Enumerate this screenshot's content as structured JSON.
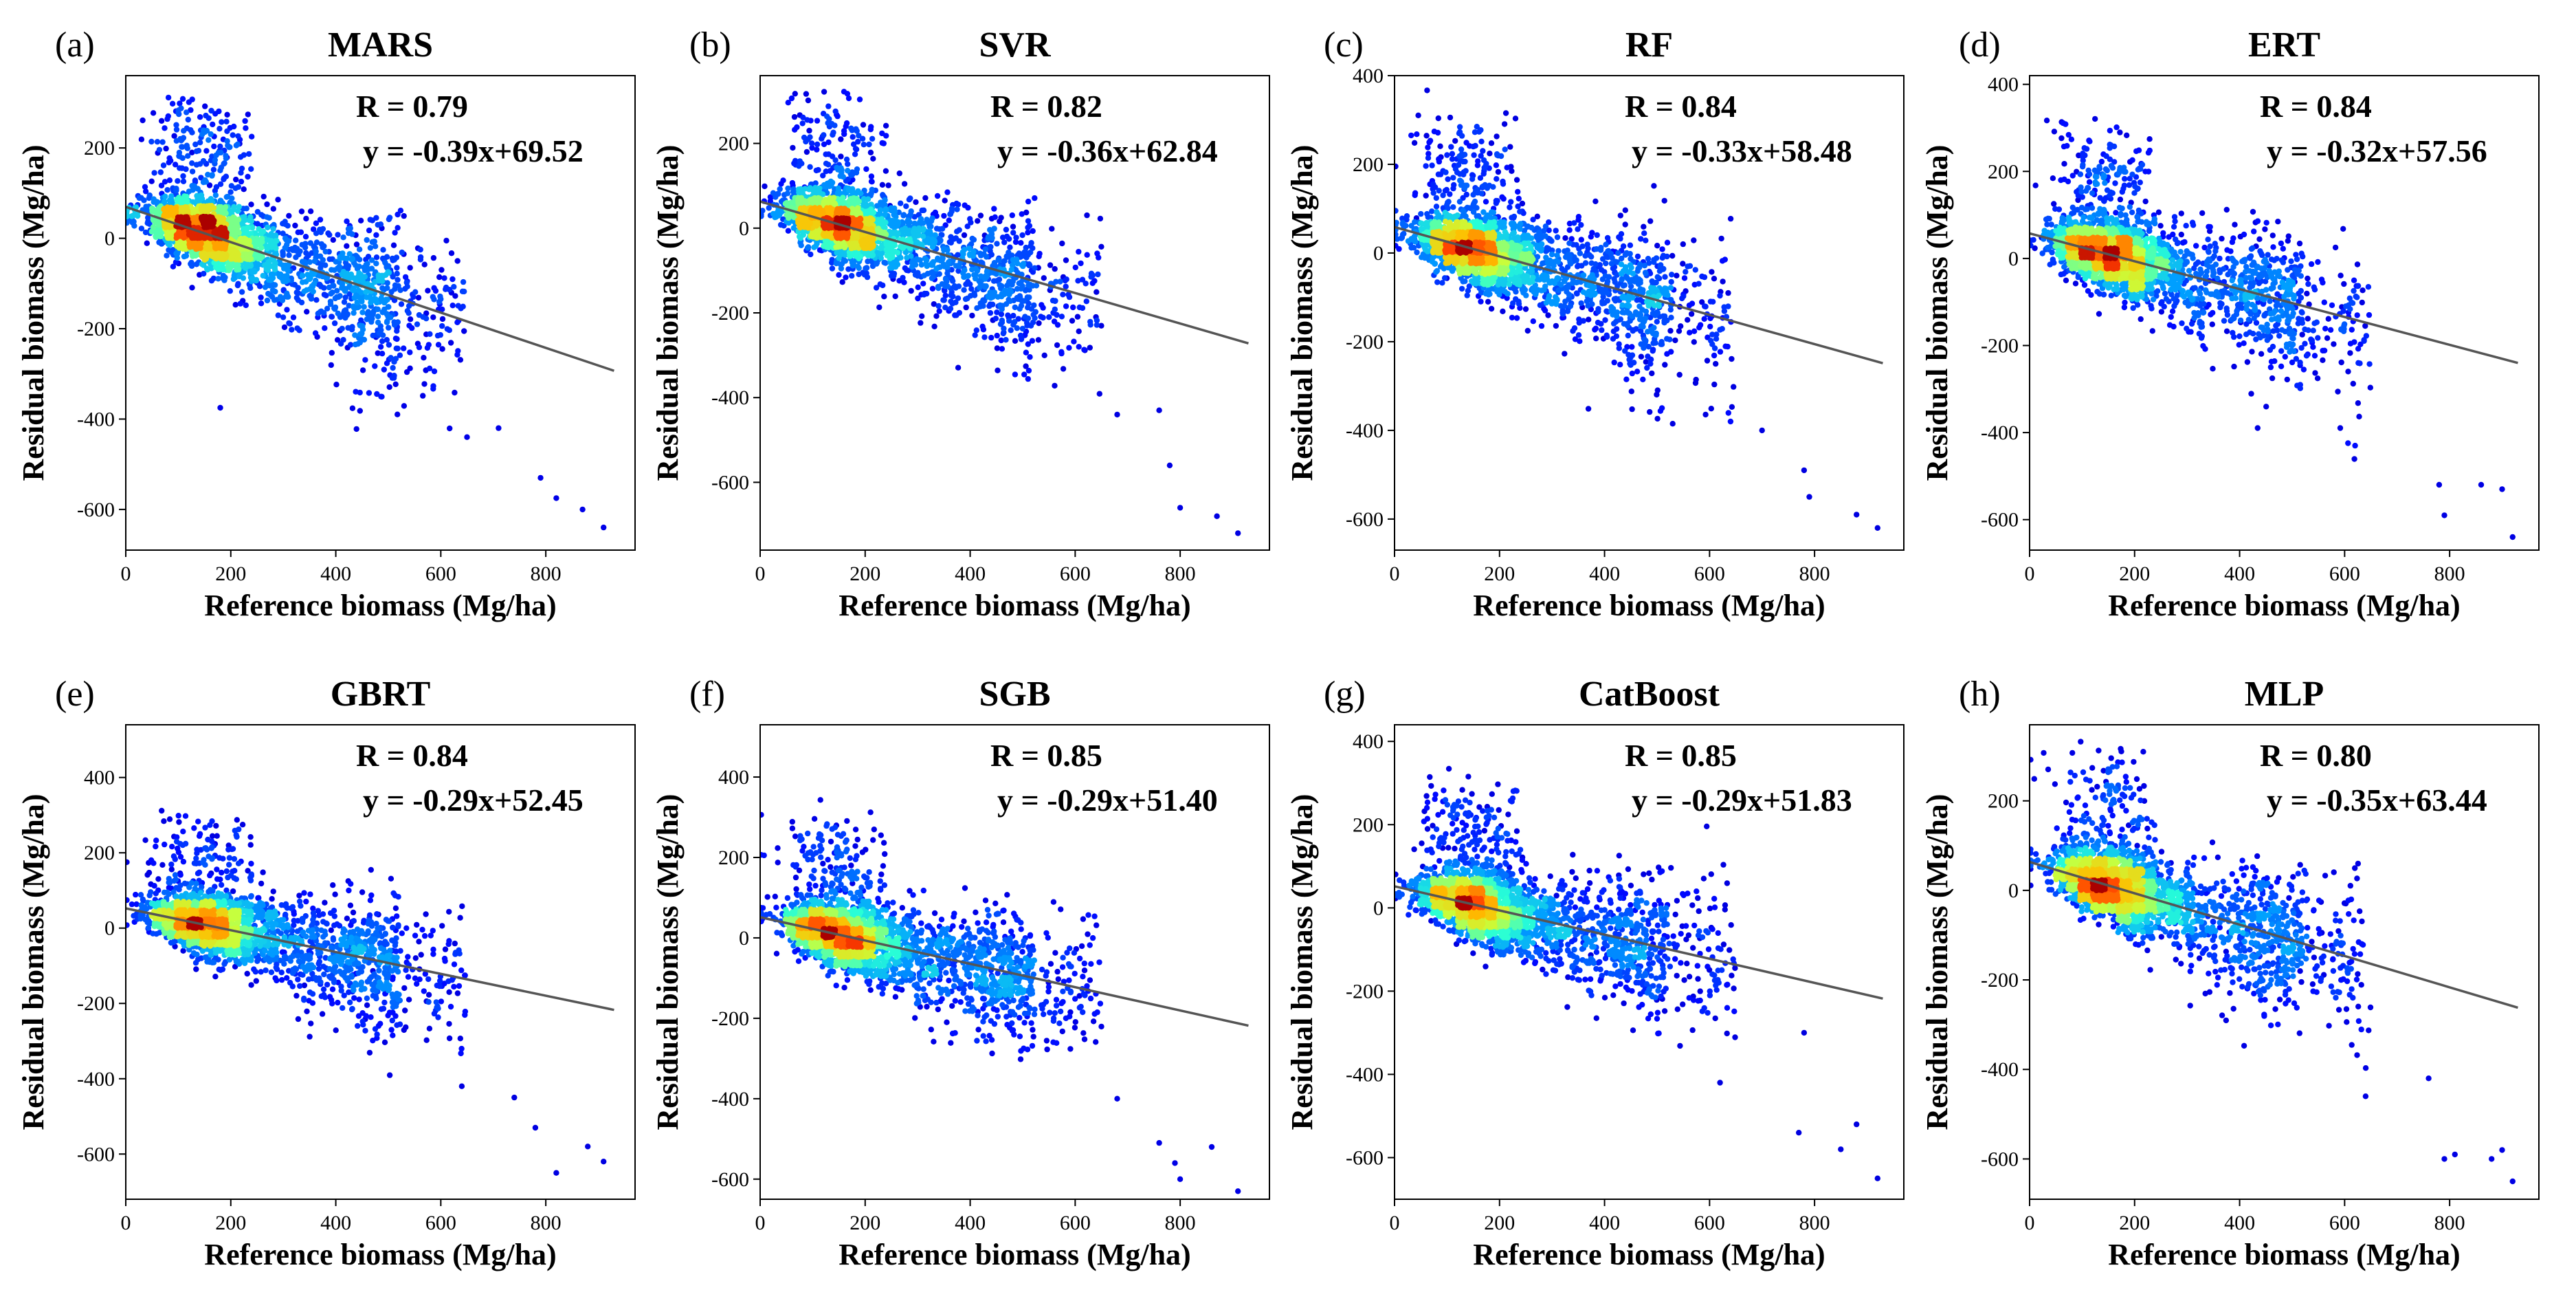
{
  "figure": {
    "xlabel": "Reference biomass (Mg/ha)",
    "ylabel": "Residual biomass (Mg/ha)"
  },
  "chart_data": [
    {
      "type": "scatter",
      "panel": "(a)",
      "title": "MARS",
      "r_text": "R = 0.79",
      "eq_text": "y = -0.39x+69.52",
      "slope": -0.39,
      "intercept": 69.52,
      "line_x": [
        0,
        930
      ],
      "xlim": [
        0,
        970
      ],
      "ylim": [
        -690,
        360
      ],
      "xticks": [
        0,
        200,
        400,
        600,
        800
      ],
      "yticks": [
        -600,
        -400,
        -200,
        0,
        200
      ],
      "outliers": [
        [
          820,
          -575
        ],
        [
          870,
          -600
        ],
        [
          910,
          -640
        ],
        [
          790,
          -530
        ],
        [
          650,
          -440
        ],
        [
          710,
          -420
        ],
        [
          180,
          -375
        ]
      ],
      "xlabel": "Reference biomass (Mg/ha)",
      "ylabel": "Residual biomass (Mg/ha)",
      "grid": false,
      "legend": "none",
      "colormap": "jet (point density)"
    },
    {
      "type": "scatter",
      "panel": "(b)",
      "title": "SVR",
      "r_text": "R = 0.82",
      "eq_text": "y = -0.36x+62.84",
      "slope": -0.36,
      "intercept": 62.84,
      "line_x": [
        0,
        930
      ],
      "xlim": [
        0,
        970
      ],
      "ylim": [
        -760,
        360
      ],
      "xticks": [
        0,
        200,
        400,
        600,
        800
      ],
      "yticks": [
        -600,
        -400,
        -200,
        0,
        200
      ],
      "outliers": [
        [
          780,
          -560
        ],
        [
          800,
          -660
        ],
        [
          870,
          -680
        ],
        [
          910,
          -720
        ],
        [
          760,
          -430
        ],
        [
          680,
          -440
        ]
      ],
      "xlabel": "Reference biomass (Mg/ha)",
      "ylabel": "Residual biomass (Mg/ha)",
      "grid": false,
      "legend": "none",
      "colormap": "jet (point density)"
    },
    {
      "type": "scatter",
      "panel": "(c)",
      "title": "RF",
      "r_text": "R = 0.84",
      "eq_text": "y = -0.33x+58.48",
      "slope": -0.33,
      "intercept": 58.48,
      "line_x": [
        0,
        930
      ],
      "xlim": [
        0,
        970
      ],
      "ylim": [
        -670,
        400
      ],
      "xticks": [
        0,
        200,
        400,
        600,
        800
      ],
      "yticks": [
        -600,
        -400,
        -200,
        0,
        200,
        400
      ],
      "outliers": [
        [
          790,
          -550
        ],
        [
          880,
          -590
        ],
        [
          920,
          -620
        ],
        [
          780,
          -490
        ],
        [
          700,
          -400
        ],
        [
          640,
          -380
        ]
      ],
      "xlabel": "Reference biomass (Mg/ha)",
      "ylabel": "Residual biomass (Mg/ha)",
      "grid": false,
      "legend": "none",
      "colormap": "jet (point density)"
    },
    {
      "type": "scatter",
      "panel": "(d)",
      "title": "ERT",
      "r_text": "R = 0.84",
      "eq_text": "y = -0.32x+57.56",
      "slope": -0.32,
      "intercept": 57.56,
      "line_x": [
        0,
        930
      ],
      "xlim": [
        0,
        970
      ],
      "ylim": [
        -670,
        420
      ],
      "xticks": [
        0,
        200,
        400,
        600,
        800
      ],
      "yticks": [
        -600,
        -400,
        -200,
        0,
        200,
        400
      ],
      "outliers": [
        [
          790,
          -590
        ],
        [
          860,
          -520
        ],
        [
          900,
          -530
        ],
        [
          920,
          -640
        ],
        [
          780,
          -520
        ],
        [
          620,
          -430
        ]
      ],
      "xlabel": "Reference biomass (Mg/ha)",
      "ylabel": "Residual biomass (Mg/ha)",
      "grid": false,
      "legend": "none",
      "colormap": "jet (point density)"
    },
    {
      "type": "scatter",
      "panel": "(e)",
      "title": "GBRT",
      "r_text": "R = 0.84",
      "eq_text": "y = -0.29x+52.45",
      "slope": -0.29,
      "intercept": 52.45,
      "line_x": [
        0,
        930
      ],
      "xlim": [
        0,
        970
      ],
      "ylim": [
        -720,
        540
      ],
      "xticks": [
        0,
        200,
        400,
        600,
        800
      ],
      "yticks": [
        -600,
        -400,
        -200,
        0,
        200,
        400
      ],
      "outliers": [
        [
          820,
          -650
        ],
        [
          880,
          -580
        ],
        [
          910,
          -620
        ],
        [
          780,
          -530
        ],
        [
          740,
          -450
        ],
        [
          640,
          -420
        ]
      ],
      "xlabel": "Reference biomass (Mg/ha)",
      "ylabel": "Residual biomass (Mg/ha)",
      "grid": false,
      "legend": "none",
      "colormap": "jet (point density)"
    },
    {
      "type": "scatter",
      "panel": "(f)",
      "title": "SGB",
      "r_text": "R = 0.85",
      "eq_text": "y = -0.29x+51.40",
      "slope": -0.29,
      "intercept": 51.4,
      "line_x": [
        0,
        930
      ],
      "xlim": [
        0,
        970
      ],
      "ylim": [
        -650,
        530
      ],
      "xticks": [
        0,
        200,
        400,
        600,
        800
      ],
      "yticks": [
        -600,
        -400,
        -200,
        0,
        200,
        400
      ],
      "outliers": [
        [
          790,
          -560
        ],
        [
          860,
          -520
        ],
        [
          910,
          -630
        ],
        [
          800,
          -600
        ],
        [
          760,
          -510
        ],
        [
          680,
          -400
        ]
      ],
      "xlabel": "Reference biomass (Mg/ha)",
      "ylabel": "Residual biomass (Mg/ha)",
      "grid": false,
      "legend": "none",
      "colormap": "jet (point density)"
    },
    {
      "type": "scatter",
      "panel": "(g)",
      "title": "CatBoost",
      "r_text": "R = 0.85",
      "eq_text": "y = -0.29x+51.83",
      "slope": -0.29,
      "intercept": 51.83,
      "line_x": [
        0,
        930
      ],
      "xlim": [
        0,
        970
      ],
      "ylim": [
        -700,
        440
      ],
      "xticks": [
        0,
        200,
        400,
        600,
        800
      ],
      "yticks": [
        -600,
        -400,
        -200,
        0,
        200,
        400
      ],
      "outliers": [
        [
          770,
          -540
        ],
        [
          880,
          -520
        ],
        [
          920,
          -650
        ],
        [
          850,
          -580
        ],
        [
          780,
          -300
        ],
        [
          620,
          -420
        ]
      ],
      "xlabel": "Reference biomass (Mg/ha)",
      "ylabel": "Residual biomass (Mg/ha)",
      "grid": false,
      "legend": "none",
      "colormap": "jet (point density)"
    },
    {
      "type": "scatter",
      "panel": "(h)",
      "title": "MLP",
      "r_text": "R = 0.80",
      "eq_text": "y = -0.35x+63.44",
      "slope": -0.35,
      "intercept": 63.44,
      "line_x": [
        0,
        930
      ],
      "xlim": [
        0,
        970
      ],
      "ylim": [
        -690,
        370
      ],
      "xticks": [
        0,
        200,
        400,
        600,
        800
      ],
      "yticks": [
        -600,
        -400,
        -200,
        0,
        200
      ],
      "outliers": [
        [
          790,
          -600
        ],
        [
          810,
          -590
        ],
        [
          880,
          -600
        ],
        [
          900,
          -580
        ],
        [
          920,
          -650
        ],
        [
          760,
          -420
        ],
        [
          640,
          -460
        ]
      ],
      "xlabel": "Reference biomass (Mg/ha)",
      "ylabel": "Residual biomass (Mg/ha)",
      "grid": false,
      "legend": "none",
      "colormap": "jet (point density)"
    }
  ]
}
